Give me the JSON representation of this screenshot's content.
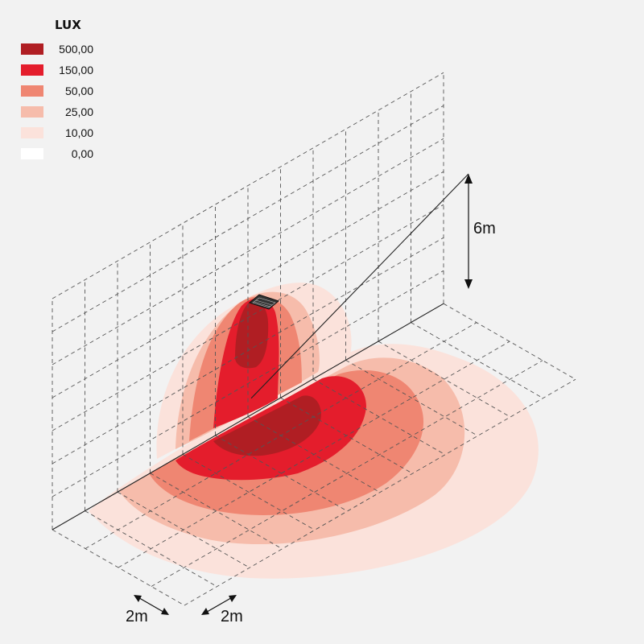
{
  "legend": {
    "title": "LUX",
    "items": [
      {
        "label": "500,00",
        "color": "#b01e23"
      },
      {
        "label": "150,00",
        "color": "#e41d2c"
      },
      {
        "label": "50,00",
        "color": "#ef8672"
      },
      {
        "label": "25,00",
        "color": "#f6bcab"
      },
      {
        "label": "10,00",
        "color": "#fbe2db"
      },
      {
        "label": "0,00",
        "color": "#ffffff"
      }
    ]
  },
  "dimensions": {
    "height": "6m",
    "grid_spacing_a": "2m",
    "grid_spacing_b": "2m"
  },
  "colors": {
    "background": "#f2f2f2",
    "grid_line": "#555555"
  }
}
